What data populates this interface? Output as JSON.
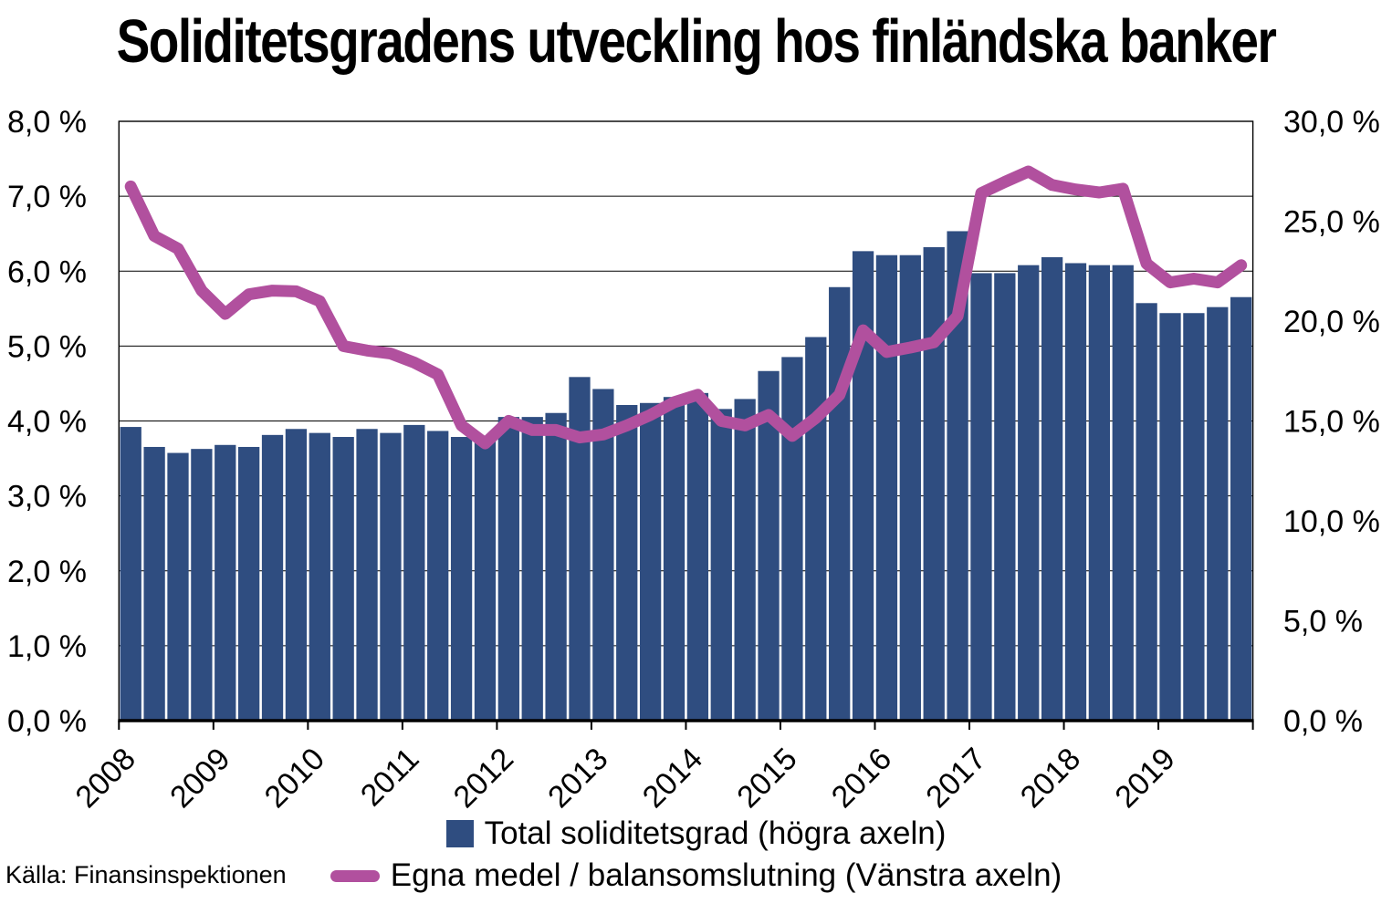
{
  "title": "Soliditetsgradens utveckling hos finländska banker",
  "source": "Källa: Finansinspektionen",
  "legend": [
    {
      "label": "Total soliditetsgrad (högra axeln)",
      "marker": "square",
      "color": "#2F4D80"
    },
    {
      "label": "Egna medel / balansomslutning (Vänstra axeln)",
      "marker": "line",
      "color": "#B1509E"
    }
  ],
  "colors": {
    "bar": "#2F4D80",
    "line": "#B1509E",
    "grid": "#000000",
    "axis": "#000000",
    "text": "#000000",
    "background": "#ffffff"
  },
  "chart_data": {
    "type": "bar",
    "subtype": "bar-and-line-dual-axis",
    "title": "Soliditetsgradens utveckling hos finländska banker",
    "xlabel": "",
    "ylabel_left": "Egna medel / balansomslutning (%)",
    "ylabel_right": "Total soliditetsgrad (%)",
    "grid": true,
    "legend_position": "bottom",
    "x_tick_labels": [
      "2008",
      "2009",
      "2010",
      "2011",
      "2012",
      "2013",
      "2014",
      "2015",
      "2016",
      "2017",
      "2018",
      "2019"
    ],
    "bars_per_year": 4,
    "left_axis": {
      "min": 0,
      "max": 8,
      "step": 1,
      "ticks": [
        "8,0 %",
        "7,0 %",
        "6,0 %",
        "5,0 %",
        "4,0 %",
        "3,0 %",
        "2,0 %",
        "1,0 %",
        "0,0 %"
      ]
    },
    "right_axis": {
      "min": 0,
      "max": 30,
      "step": 5,
      "ticks": [
        "30,0 %",
        "25,0 %",
        "20,0 %",
        "15,0 %",
        "10,0 %",
        "5,0 %",
        "0,0 %"
      ]
    },
    "x_quarters": [
      "2008 Q1",
      "2008 Q2",
      "2008 Q3",
      "2008 Q4",
      "2009 Q1",
      "2009 Q2",
      "2009 Q3",
      "2009 Q4",
      "2010 Q1",
      "2010 Q2",
      "2010 Q3",
      "2010 Q4",
      "2011 Q1",
      "2011 Q2",
      "2011 Q3",
      "2011 Q4",
      "2012 Q1",
      "2012 Q2",
      "2012 Q3",
      "2012 Q4",
      "2013 Q1",
      "2013 Q2",
      "2013 Q3",
      "2013 Q4",
      "2014 Q1",
      "2014 Q2",
      "2014 Q3",
      "2014 Q4",
      "2015 Q1",
      "2015 Q2",
      "2015 Q3",
      "2015 Q4",
      "2016 Q1",
      "2016 Q2",
      "2016 Q3",
      "2016 Q4",
      "2017 Q1",
      "2017 Q2",
      "2017 Q3",
      "2017 Q4",
      "2018 Q1",
      "2018 Q2",
      "2018 Q3",
      "2018 Q4",
      "2019 Q1",
      "2019 Q2",
      "2019 Q3",
      "2019 Q4"
    ],
    "series": [
      {
        "name": "Total soliditetsgrad (högra axeln)",
        "type": "bar",
        "axis": "right",
        "color": "#2F4D80",
        "values": [
          14.7,
          13.7,
          13.4,
          13.6,
          13.8,
          13.7,
          14.3,
          14.6,
          14.4,
          14.2,
          14.6,
          14.4,
          14.8,
          14.5,
          14.2,
          14.1,
          15.2,
          15.2,
          15.4,
          17.2,
          16.6,
          15.8,
          15.9,
          16.2,
          16.4,
          15.6,
          16.1,
          17.5,
          18.2,
          19.2,
          21.7,
          23.5,
          23.3,
          23.3,
          23.7,
          24.5,
          22.4,
          22.4,
          22.8,
          23.2,
          22.9,
          22.8,
          22.8,
          20.9,
          20.4,
          20.4,
          20.7,
          21.2
        ]
      },
      {
        "name": "Egna medel / balansomslutning (Vänstra axeln)",
        "type": "line",
        "axis": "left",
        "color": "#B1509E",
        "values": [
          7.13,
          6.47,
          6.3,
          5.74,
          5.43,
          5.69,
          5.74,
          5.73,
          5.6,
          5.0,
          4.94,
          4.9,
          4.78,
          4.62,
          3.94,
          3.7,
          4.0,
          3.88,
          3.88,
          3.78,
          3.82,
          3.94,
          4.08,
          4.25,
          4.35,
          4.0,
          3.94,
          4.08,
          3.8,
          4.04,
          4.35,
          5.21,
          4.92,
          4.98,
          5.05,
          5.4,
          7.04,
          7.19,
          7.33,
          7.15,
          7.09,
          7.05,
          7.1,
          6.1,
          5.85,
          5.9,
          5.85,
          6.08
        ]
      }
    ]
  }
}
